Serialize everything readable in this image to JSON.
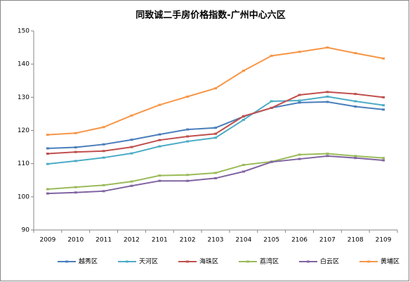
{
  "chart_data": {
    "type": "line",
    "title": "同致诚二手房价格指数-广州中心六区",
    "categories": [
      "2009",
      "2010",
      "2011",
      "2012",
      "2101",
      "2102",
      "2103",
      "2104",
      "2105",
      "2106",
      "2107",
      "2108",
      "2109"
    ],
    "series": [
      {
        "name": "越秀区",
        "color": "#4a7ebb",
        "values": [
          114.6,
          114.9,
          115.8,
          117.2,
          118.8,
          120.3,
          120.8,
          124.2,
          126.8,
          128.4,
          128.6,
          127.2,
          126.3
        ]
      },
      {
        "name": "天河区",
        "color": "#4bacc6",
        "values": [
          109.9,
          110.8,
          111.8,
          113.1,
          115.2,
          116.7,
          117.8,
          123.2,
          128.8,
          129.0,
          130.2,
          128.8,
          127.6
        ]
      },
      {
        "name": "海珠区",
        "color": "#c0504d",
        "values": [
          113.0,
          113.5,
          113.8,
          115.0,
          117.1,
          118.2,
          119.0,
          124.3,
          126.8,
          130.7,
          131.6,
          131.0,
          130.0
        ]
      },
      {
        "name": "荔湾区",
        "color": "#9bbb59",
        "values": [
          102.3,
          102.9,
          103.5,
          104.6,
          106.4,
          106.6,
          107.2,
          109.6,
          110.6,
          112.7,
          113.0,
          112.3,
          111.7
        ]
      },
      {
        "name": "白云区",
        "color": "#8064a2",
        "values": [
          101.0,
          101.3,
          101.7,
          103.3,
          104.8,
          104.8,
          105.6,
          107.6,
          110.5,
          111.4,
          112.3,
          111.7,
          111.0
        ]
      },
      {
        "name": "黄埔区",
        "color": "#f79646",
        "values": [
          118.7,
          119.2,
          121.0,
          124.5,
          127.7,
          130.2,
          132.7,
          138.0,
          142.5,
          143.7,
          145.0,
          143.3,
          141.7
        ]
      }
    ],
    "ylim": [
      90,
      150
    ],
    "yticks": [
      90,
      100,
      110,
      120,
      130,
      140,
      150
    ],
    "grid": false,
    "legend": "bottom"
  }
}
